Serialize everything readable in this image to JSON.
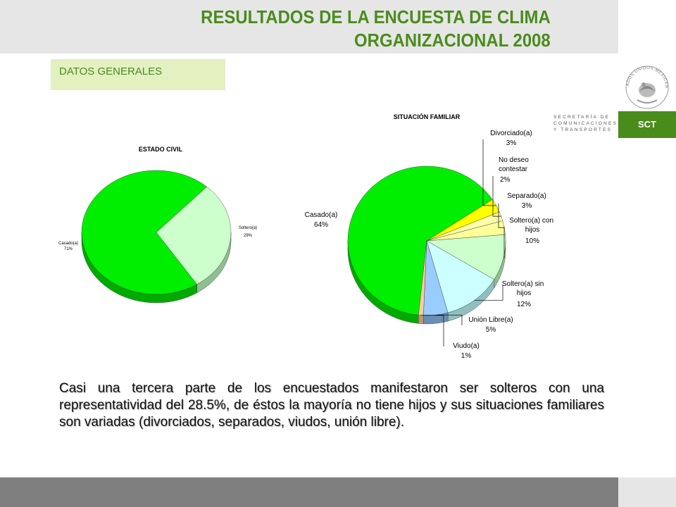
{
  "header": {
    "title_line1": "RESULTADOS DE LA ENCUESTA DE CLIMA",
    "title_line2": "ORGANIZACIONAL 2008",
    "section_label": "DATOS GENERALES"
  },
  "logo": {
    "secretaria_lines": [
      "SECRETARÍA DE",
      "COMUNICACIONES",
      "Y TRANSPORTES"
    ],
    "abbreviation": "SCT",
    "seal_text": "ESTADOS UNIDOS MEXICANOS"
  },
  "colors": {
    "title_green": "#4a8c1c",
    "section_bg": "#e3f0c0",
    "footer_gray": "#7f7f7f"
  },
  "chart_data": [
    {
      "type": "pie",
      "title": "ESTADO CIVIL",
      "slices": [
        {
          "name": "Casado(a)",
          "value": 71,
          "label": "71%",
          "color": "#00ee00",
          "side": "#00aa00"
        },
        {
          "name": "Soltero(a)",
          "value": 29,
          "label": "29%",
          "color": "#ccffcc",
          "side": "#8fbf8f"
        }
      ]
    },
    {
      "type": "pie",
      "title": "SITUACIÓN FAMILIAR",
      "slices": [
        {
          "name": "Casado(a)",
          "value": 64,
          "label": "64%",
          "color": "#00ee00",
          "side": "#00aa00"
        },
        {
          "name": "Divorciado(a)",
          "value": 3,
          "label": "3%",
          "color": "#ffff00",
          "side": "#b8b800"
        },
        {
          "name": "No deseo contestar",
          "value": 2,
          "label": "2%",
          "color": "#ffffaa",
          "side": "#c0c080"
        },
        {
          "name": "Separado(a)",
          "value": 3,
          "label": "3%",
          "color": "#ffff99",
          "side": "#c0c070"
        },
        {
          "name": "Soltero(a) con hijos",
          "value": 10,
          "label": "10%",
          "color": "#ccffcc",
          "side": "#8fbf8f"
        },
        {
          "name": "Soltero(a) sin hijos",
          "value": 12,
          "label": "12%",
          "color": "#ccffff",
          "side": "#8fbfbf"
        },
        {
          "name": "Unión Libre(a)",
          "value": 5,
          "label": "5%",
          "color": "#99ccff",
          "side": "#6a8fb3"
        },
        {
          "name": "Viudo(a)",
          "value": 1,
          "label": "1%",
          "color": "#ffcc99",
          "side": "#bf9970"
        }
      ]
    }
  ],
  "caption": "Casi una tercera parte de los encuestados manifestaron ser solteros con una representatividad del 28.5%, de éstos la mayoría no tiene hijos y sus situaciones familiares son variadas (divorciados, separados, viudos, unión libre)."
}
